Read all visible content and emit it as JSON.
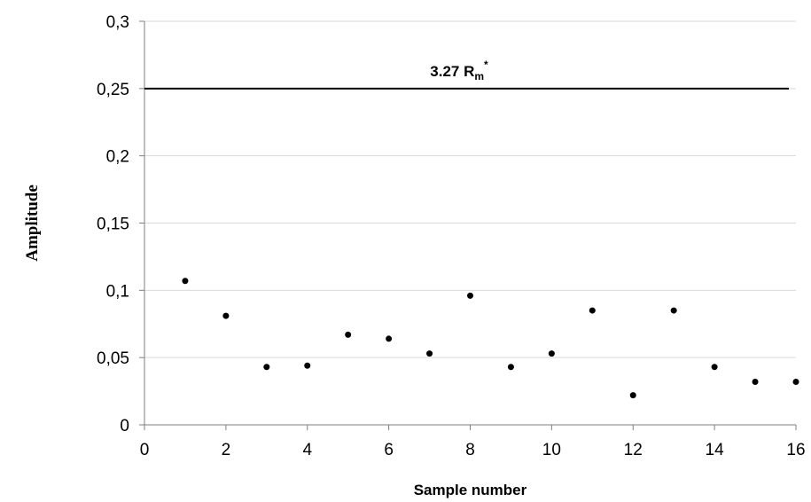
{
  "chart_data": {
    "type": "scatter",
    "xlabel": "Sample number",
    "ylabel": "Amplitude",
    "xlim": [
      0,
      16
    ],
    "ylim": [
      0,
      0.3
    ],
    "x_ticks": [
      0,
      2,
      4,
      6,
      8,
      10,
      12,
      14,
      16
    ],
    "x_tick_labels": [
      "0",
      "2",
      "4",
      "6",
      "8",
      "10",
      "12",
      "14",
      "16"
    ],
    "y_ticks": [
      0,
      0.05,
      0.1,
      0.15,
      0.2,
      0.25,
      0.3
    ],
    "y_tick_labels": [
      "0",
      "0,05",
      "0,1",
      "0,15",
      "0,2",
      "0,25",
      "0,3"
    ],
    "grid": "horizontal",
    "series": [
      {
        "x": [
          1,
          2,
          3,
          4,
          5,
          6,
          7,
          8,
          9,
          10,
          11,
          12,
          13,
          14,
          15,
          16
        ],
        "y": [
          0.107,
          0.081,
          0.043,
          0.044,
          0.067,
          0.064,
          0.053,
          0.096,
          0.043,
          0.053,
          0.085,
          0.022,
          0.085,
          0.043,
          0.032,
          0.032
        ]
      }
    ],
    "reference_line": {
      "y": 0.25,
      "label_main": "3.27 R",
      "label_sub": "m",
      "label_sup": "*"
    }
  }
}
